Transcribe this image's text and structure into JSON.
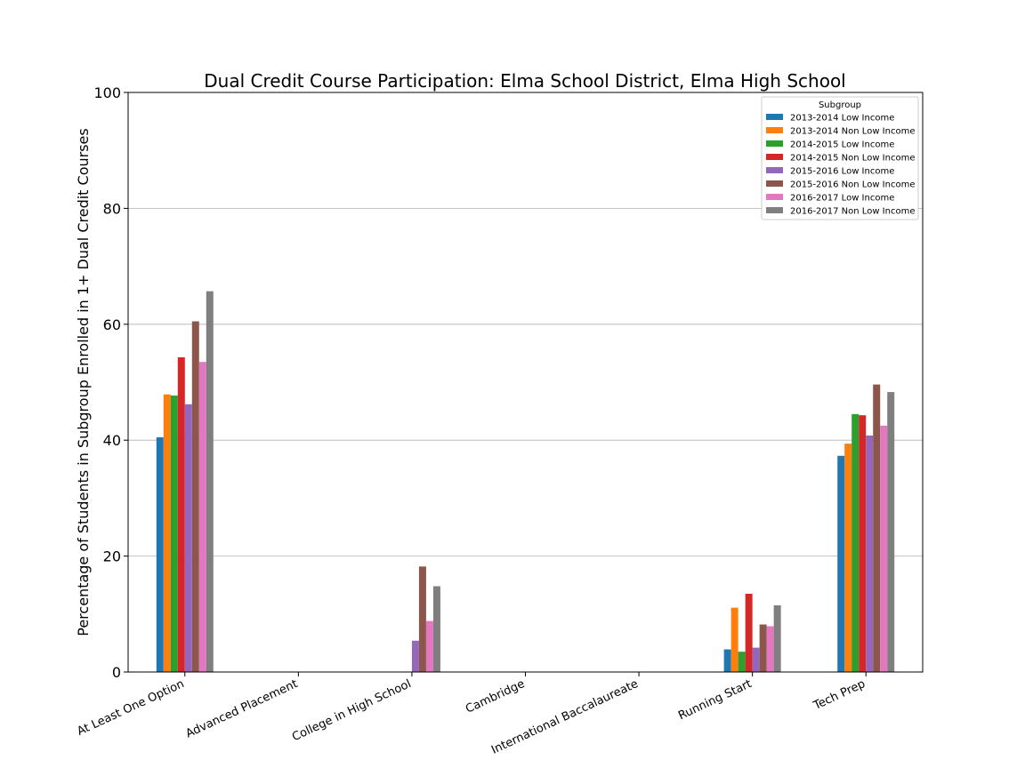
{
  "chart_data": {
    "type": "bar",
    "title": "Dual Credit Course Participation: Elma School District, Elma High School",
    "ylabel": "Percentage of Students in Subgroup Enrolled in 1+ Dual Credit Courses",
    "xlabel": "",
    "ylim": [
      0,
      100
    ],
    "yticks": [
      0,
      20,
      40,
      60,
      80,
      100
    ],
    "grid": "horizontal",
    "legend_title": "Subgroup",
    "legend_position": "top-right",
    "categories": [
      "At Least One Option",
      "Advanced Placement",
      "College in High School",
      "Cambridge",
      "International Baccalaureate",
      "Running Start",
      "Tech Prep"
    ],
    "series": [
      {
        "name": "2013-2014 Low Income",
        "color": "#1f77b4",
        "values": [
          40.5,
          0,
          0,
          0,
          0,
          3.9,
          37.3
        ]
      },
      {
        "name": "2013-2014 Non Low Income",
        "color": "#ff7f0e",
        "values": [
          47.9,
          0,
          0,
          0,
          0,
          11.1,
          39.4
        ]
      },
      {
        "name": "2014-2015 Low Income",
        "color": "#2ca02c",
        "values": [
          47.7,
          0,
          0,
          0,
          0,
          3.5,
          44.5
        ]
      },
      {
        "name": "2014-2015 Non Low Income",
        "color": "#d62728",
        "values": [
          54.3,
          0,
          0,
          0,
          0,
          13.5,
          44.3
        ]
      },
      {
        "name": "2015-2016 Low Income",
        "color": "#9467bd",
        "values": [
          46.2,
          0,
          5.4,
          0,
          0,
          4.2,
          40.8
        ]
      },
      {
        "name": "2015-2016 Non Low Income",
        "color": "#8c564b",
        "values": [
          60.5,
          0,
          18.2,
          0,
          0,
          8.2,
          49.6
        ]
      },
      {
        "name": "2016-2017 Low Income",
        "color": "#e377c2",
        "values": [
          53.5,
          0,
          8.8,
          0,
          0,
          7.9,
          42.5
        ]
      },
      {
        "name": "2016-2017 Non Low Income",
        "color": "#7f7f7f",
        "values": [
          65.7,
          0,
          14.8,
          0,
          0,
          11.5,
          48.3
        ]
      }
    ]
  }
}
